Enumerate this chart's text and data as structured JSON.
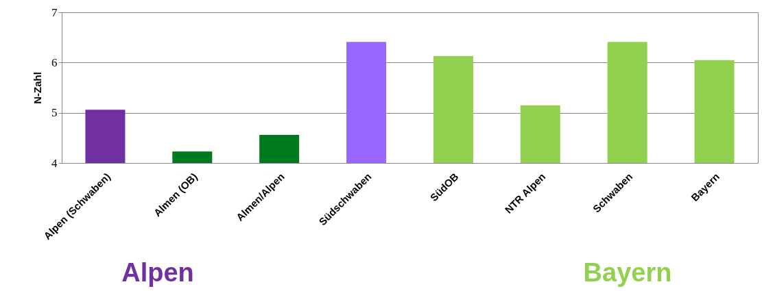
{
  "chart_data": {
    "type": "bar",
    "ylabel": "N-Zahl",
    "categories": [
      "Alpen (Schwaben)",
      "Almen (OB)",
      "Almen/Alpen",
      "Südschwaben",
      "SüdOB",
      "NTR Alpen",
      "Schwaben",
      "Bayern"
    ],
    "values": [
      5.06,
      4.23,
      4.56,
      6.41,
      6.13,
      5.15,
      6.41,
      6.05
    ],
    "colors": [
      "#7030a0",
      "#007a1f",
      "#007a1f",
      "#9966ff",
      "#92d050",
      "#92d050",
      "#92d050",
      "#92d050"
    ],
    "ylim": [
      4,
      7
    ],
    "yticks": [
      4,
      5,
      6,
      7
    ],
    "grid": "y",
    "annotations": [
      "Alpen",
      "Bayern"
    ]
  }
}
